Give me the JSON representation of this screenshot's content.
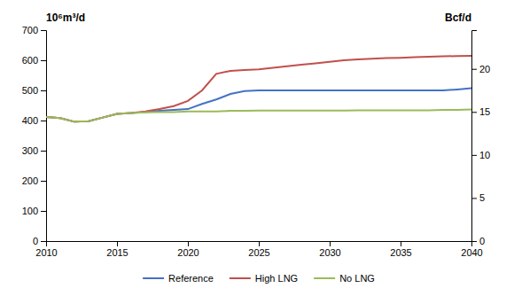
{
  "chart_data": {
    "type": "line",
    "y_label": "10⁶m³/d",
    "y2_label": "Bcf/d",
    "x": [
      2010,
      2011,
      2012,
      2013,
      2014,
      2015,
      2016,
      2017,
      2018,
      2019,
      2020,
      2021,
      2022,
      2023,
      2024,
      2025,
      2026,
      2027,
      2028,
      2029,
      2030,
      2031,
      2032,
      2033,
      2034,
      2035,
      2036,
      2037,
      2038,
      2039,
      2040
    ],
    "series": [
      {
        "name": "Reference",
        "color": "#4472C4",
        "values": [
          412,
          408,
          396,
          398,
          410,
          422,
          425,
          428,
          432,
          435,
          438,
          455,
          470,
          488,
          498,
          500,
          500,
          500,
          500,
          500,
          500,
          500,
          500,
          500,
          500,
          500,
          500,
          500,
          500,
          503,
          507
        ]
      },
      {
        "name": "High LNG",
        "color": "#C0504D",
        "values": [
          412,
          408,
          396,
          398,
          410,
          422,
          425,
          430,
          438,
          448,
          465,
          500,
          555,
          565,
          568,
          570,
          575,
          580,
          585,
          590,
          595,
          600,
          603,
          605,
          607,
          608,
          610,
          612,
          613,
          614,
          615
        ]
      },
      {
        "name": "No LNG",
        "color": "#9BBB59",
        "values": [
          412,
          408,
          396,
          398,
          410,
          422,
          425,
          427,
          428,
          428,
          430,
          430,
          430,
          432,
          432,
          433,
          433,
          433,
          433,
          433,
          433,
          433,
          434,
          434,
          434,
          434,
          434,
          434,
          435,
          435,
          437
        ]
      }
    ],
    "xlim": [
      2010,
      2040
    ],
    "xticks": [
      2010,
      2015,
      2020,
      2025,
      2030,
      2035,
      2040
    ],
    "ylim": [
      0,
      700
    ],
    "yticks": [
      0,
      100,
      200,
      300,
      400,
      500,
      600,
      700
    ],
    "y2lim": [
      0,
      24.5
    ],
    "y2ticks": [
      0,
      5,
      10,
      15,
      20
    ],
    "grid": false,
    "legend": "bottom"
  }
}
